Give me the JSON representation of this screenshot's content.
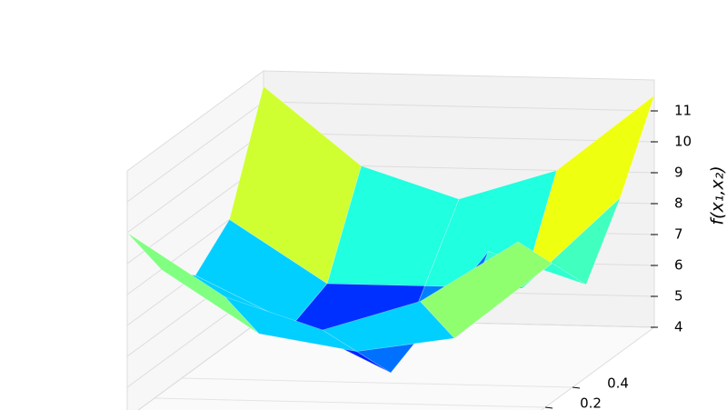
{
  "chart_data": {
    "type": "surface",
    "zlabel": "f(x₁,x₂)",
    "x": [
      0,
      0.25,
      0.5,
      0.75,
      1
    ],
    "y": [
      0,
      0.25,
      0.5,
      0.75,
      1
    ],
    "z": [
      [
        10,
        8,
        7,
        8,
        10
      ],
      [
        8,
        6,
        5.5,
        6,
        8.5
      ],
      [
        7,
        5.5,
        4,
        8,
        7
      ],
      [
        8,
        6,
        6,
        6,
        9
      ],
      [
        11.5,
        9,
        8,
        9,
        11.5
      ]
    ],
    "colormap": "jet",
    "xlim": [
      0,
      1
    ],
    "ylim": [
      0,
      1
    ],
    "zlim": [
      4,
      12
    ],
    "yticks": [
      0.2,
      0.4
    ],
    "zticks": [
      4,
      5,
      6,
      7,
      8,
      9,
      10,
      11
    ],
    "grid": true
  }
}
